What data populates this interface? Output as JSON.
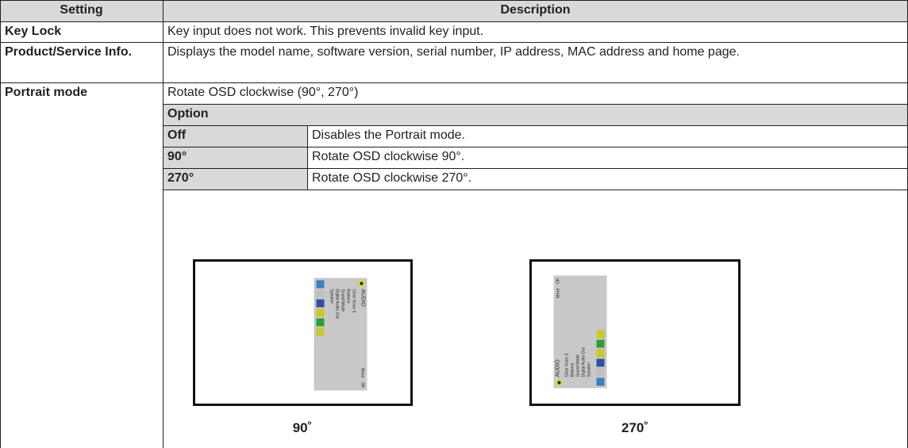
{
  "table": {
    "header": [
      "Setting",
      "Description"
    ],
    "rows": [
      [
        "Key Lock",
        "Key input does not work. This prevents invalid key input."
      ],
      [
        "Product/Service Info.",
        "Displays the model name, software version, serial number, IP address, MAC address and home page."
      ],
      [
        "Portrait mode",
        "Rotate OSD clockwise (90°, 270°)"
      ]
    ]
  },
  "options": {
    "header": "Option",
    "rows": [
      [
        "Off",
        "Disables the Portrait mode."
      ],
      [
        "90°",
        "Rotate OSD clockwise 90°."
      ],
      [
        "270°",
        "Rotate OSD clockwise 270°."
      ]
    ]
  },
  "figures": [
    {
      "caption": "90˚",
      "osd": {
        "title": "AUDIO",
        "items": [
          "Clear Voice II",
          "Balance",
          "Sound Mode",
          "Digital Audio Out",
          "Speaker"
        ],
        "move": "Move",
        "ok": "OK"
      }
    },
    {
      "caption": "270˚",
      "osd": {
        "title": "AUDIO",
        "items": [
          "Clear Voice II",
          "Balance",
          "Sound Mode",
          "Digital Audio Out",
          "Speaker"
        ],
        "move": "Move",
        "ok": "OK"
      }
    }
  ]
}
